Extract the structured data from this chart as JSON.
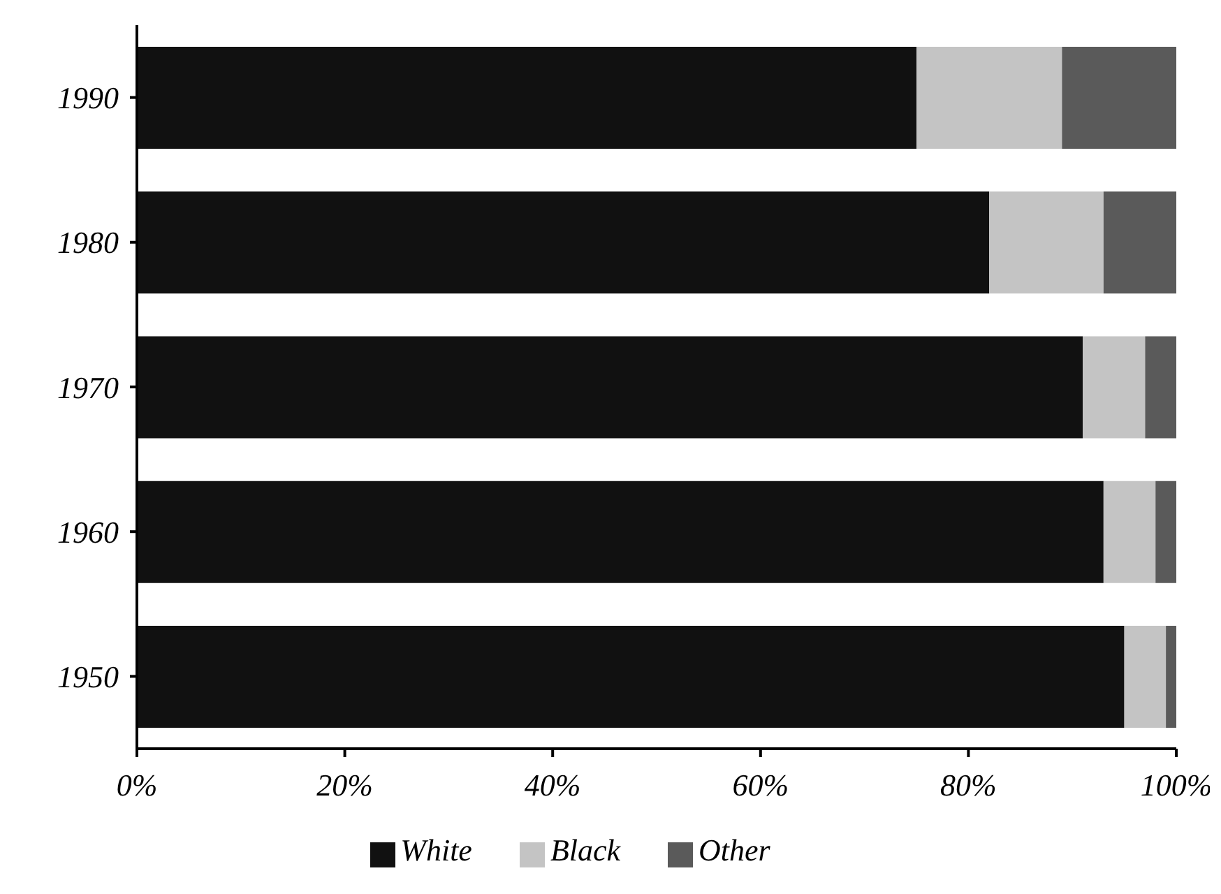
{
  "chart_data": {
    "type": "bar",
    "orientation": "horizontal",
    "stacked": true,
    "categories": [
      "1990",
      "1980",
      "1970",
      "1960",
      "1950"
    ],
    "series": [
      {
        "name": "White",
        "color": "#111111",
        "values": [
          75,
          82,
          91,
          93,
          95
        ]
      },
      {
        "name": "Black",
        "color": "#c4c4c4",
        "values": [
          14,
          11,
          6,
          5,
          4
        ]
      },
      {
        "name": "Other",
        "color": "#5a5a5a",
        "values": [
          11,
          7,
          3,
          2,
          1
        ]
      }
    ],
    "xlim": [
      0,
      100
    ],
    "xticks": [
      {
        "value": 0,
        "label": "0%"
      },
      {
        "value": 20,
        "label": "20%"
      },
      {
        "value": 40,
        "label": "40%"
      },
      {
        "value": 60,
        "label": "60%"
      },
      {
        "value": 80,
        "label": "80%"
      },
      {
        "value": 100,
        "label": "100%"
      }
    ],
    "grid": false,
    "legend": "bottom"
  }
}
